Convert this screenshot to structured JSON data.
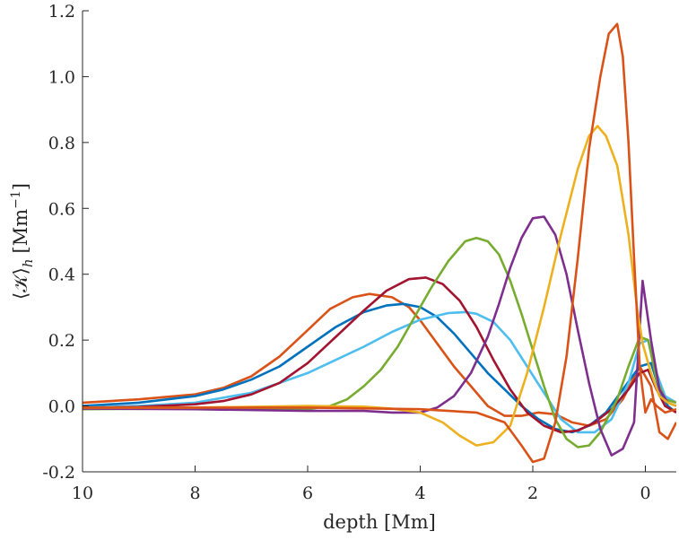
{
  "chart_data": {
    "type": "line",
    "title": "",
    "xlabel": "depth [Mm]",
    "ylabel": "⟨𝒦⟩h [Mm⁻¹]",
    "ylabel_parts": {
      "main": "⟨𝒦⟩",
      "sub": "h",
      "units": "[Mm",
      "sup": "−1",
      "close": "]"
    },
    "xlim": [
      10,
      -0.55
    ],
    "ylim": [
      -0.2,
      1.2
    ],
    "x_reversed": true,
    "grid": false,
    "x_ticks": [
      10,
      8,
      6,
      4,
      2,
      0
    ],
    "y_ticks": [
      -0.2,
      0.0,
      0.2,
      0.4,
      0.6,
      0.8,
      1.0,
      1.2
    ],
    "x_tick_labels": [
      "10",
      "8",
      "6",
      "4",
      "2",
      "0"
    ],
    "y_tick_labels": [
      "-0.2",
      "0.0",
      "0.2",
      "0.4",
      "0.6",
      "0.8",
      "1.0",
      "1.2"
    ],
    "series": [
      {
        "name": "series-1-orange",
        "color": "#D95319",
        "x": [
          10,
          9,
          8,
          7.5,
          7,
          6.5,
          6,
          5.6,
          5.2,
          4.9,
          4.5,
          4.2,
          4,
          3.7,
          3.4,
          3.1,
          2.8,
          2.5,
          2.2,
          1.9,
          1.6,
          1.3,
          1.0,
          0.7,
          0.4,
          0.1,
          -0.1,
          -0.25,
          -0.4,
          -0.55
        ],
        "values": [
          0.01,
          0.02,
          0.035,
          0.055,
          0.09,
          0.15,
          0.23,
          0.295,
          0.33,
          0.34,
          0.33,
          0.3,
          0.26,
          0.19,
          0.12,
          0.06,
          0.0,
          -0.03,
          -0.03,
          -0.02,
          -0.025,
          -0.05,
          -0.06,
          -0.04,
          0.02,
          0.12,
          0.06,
          -0.08,
          -0.1,
          -0.05
        ]
      },
      {
        "name": "series-2-blue",
        "color": "#0072BD",
        "x": [
          10,
          9,
          8,
          7.5,
          7,
          6.5,
          6,
          5.5,
          5,
          4.6,
          4.3,
          4,
          3.7,
          3.4,
          3.1,
          2.8,
          2.5,
          2.2,
          1.9,
          1.6,
          1.3,
          1.0,
          0.7,
          0.4,
          0.1,
          -0.1,
          -0.25,
          -0.4,
          -0.55
        ],
        "values": [
          0.0,
          0.01,
          0.03,
          0.05,
          0.08,
          0.12,
          0.18,
          0.24,
          0.285,
          0.305,
          0.31,
          0.3,
          0.27,
          0.22,
          0.16,
          0.1,
          0.05,
          0.0,
          -0.04,
          -0.07,
          -0.08,
          -0.06,
          -0.02,
          0.05,
          0.12,
          0.13,
          0.05,
          0.0,
          -0.02
        ]
      },
      {
        "name": "series-3-lightblue",
        "color": "#4DBEEE",
        "x": [
          10,
          9,
          8,
          7,
          6.5,
          6,
          5.5,
          5,
          4.5,
          4,
          3.5,
          3.2,
          3.0,
          2.7,
          2.4,
          2.1,
          1.8,
          1.5,
          1.2,
          0.9,
          0.6,
          0.3,
          0.1,
          -0.05,
          -0.2,
          -0.35,
          -0.55
        ],
        "values": [
          -0.005,
          0.0,
          0.01,
          0.04,
          0.07,
          0.1,
          0.14,
          0.18,
          0.225,
          0.262,
          0.282,
          0.285,
          0.28,
          0.255,
          0.2,
          0.12,
          0.04,
          -0.04,
          -0.08,
          -0.08,
          -0.04,
          0.07,
          0.19,
          0.2,
          0.1,
          0.03,
          0.01
        ]
      },
      {
        "name": "series-4-darkred",
        "color": "#A2142F",
        "x": [
          10,
          9,
          8,
          7.5,
          7,
          6.5,
          6,
          5.5,
          5,
          4.6,
          4.2,
          3.9,
          3.6,
          3.3,
          3.0,
          2.7,
          2.4,
          2.1,
          1.8,
          1.5,
          1.2,
          0.9,
          0.6,
          0.3,
          0.1,
          -0.05,
          -0.2,
          -0.35,
          -0.55
        ],
        "values": [
          -0.005,
          -0.003,
          0.005,
          0.015,
          0.035,
          0.07,
          0.13,
          0.21,
          0.29,
          0.35,
          0.385,
          0.39,
          0.37,
          0.32,
          0.24,
          0.14,
          0.05,
          -0.02,
          -0.06,
          -0.08,
          -0.075,
          -0.05,
          -0.01,
          0.05,
          0.1,
          0.11,
          0.05,
          0.0,
          -0.02
        ]
      },
      {
        "name": "series-5-green",
        "color": "#77AC30",
        "x": [
          10,
          8,
          7,
          6.5,
          6,
          5.6,
          5.3,
          5.0,
          4.7,
          4.4,
          4.1,
          3.8,
          3.5,
          3.2,
          3.0,
          2.8,
          2.6,
          2.4,
          2.2,
          2.0,
          1.8,
          1.6,
          1.4,
          1.2,
          1.0,
          0.8,
          0.5,
          0.3,
          0.1,
          -0.05,
          -0.2,
          -0.35,
          -0.55
        ],
        "values": [
          -0.01,
          -0.008,
          -0.01,
          -0.01,
          -0.01,
          0.0,
          0.02,
          0.06,
          0.11,
          0.18,
          0.27,
          0.36,
          0.44,
          0.5,
          0.51,
          0.5,
          0.46,
          0.38,
          0.28,
          0.17,
          0.06,
          -0.04,
          -0.1,
          -0.125,
          -0.12,
          -0.08,
          0.02,
          0.12,
          0.21,
          0.2,
          0.08,
          0.02,
          0.01
        ]
      },
      {
        "name": "series-6-purple",
        "color": "#7E2F8E",
        "x": [
          10,
          8,
          6,
          5,
          4.5,
          4.0,
          3.7,
          3.4,
          3.1,
          2.8,
          2.6,
          2.4,
          2.2,
          2.0,
          1.8,
          1.6,
          1.4,
          1.2,
          1.0,
          0.8,
          0.6,
          0.4,
          0.2,
          0.05,
          -0.1,
          -0.25,
          -0.4,
          -0.55
        ],
        "values": [
          -0.008,
          -0.01,
          -0.015,
          -0.015,
          -0.02,
          -0.02,
          -0.005,
          0.03,
          0.1,
          0.21,
          0.31,
          0.42,
          0.51,
          0.57,
          0.575,
          0.52,
          0.4,
          0.23,
          0.07,
          -0.07,
          -0.15,
          -0.13,
          -0.05,
          0.38,
          0.2,
          0.05,
          0.01,
          0.0
        ]
      },
      {
        "name": "series-7-yellow",
        "color": "#EDB120",
        "x": [
          10,
          8,
          6,
          5,
          4.5,
          4.0,
          3.6,
          3.3,
          3.0,
          2.7,
          2.4,
          2.1,
          1.8,
          1.5,
          1.2,
          1.0,
          0.85,
          0.7,
          0.5,
          0.3,
          0.15,
          0.05,
          -0.1,
          -0.25,
          -0.4,
          -0.55
        ],
        "values": [
          -0.005,
          -0.005,
          0.0,
          -0.002,
          -0.008,
          -0.02,
          -0.05,
          -0.09,
          -0.12,
          -0.11,
          -0.06,
          0.1,
          0.3,
          0.52,
          0.72,
          0.82,
          0.85,
          0.82,
          0.73,
          0.52,
          0.3,
          0.19,
          0.1,
          0.03,
          0.01,
          0.0
        ]
      },
      {
        "name": "series-8-vermilion",
        "color": "#D95319",
        "x": [
          10,
          6,
          4,
          3,
          2.5,
          2.2,
          2.0,
          1.8,
          1.6,
          1.4,
          1.2,
          1.0,
          0.8,
          0.65,
          0.5,
          0.4,
          0.3,
          0.2,
          0.1,
          0.0,
          -0.1,
          -0.2,
          -0.35,
          -0.55
        ],
        "values": [
          -0.005,
          -0.005,
          -0.01,
          -0.02,
          -0.05,
          -0.12,
          -0.17,
          -0.16,
          -0.05,
          0.15,
          0.45,
          0.78,
          1.0,
          1.13,
          1.16,
          1.06,
          0.8,
          0.45,
          0.12,
          -0.02,
          0.02,
          0.0,
          -0.02,
          -0.01
        ]
      }
    ]
  }
}
